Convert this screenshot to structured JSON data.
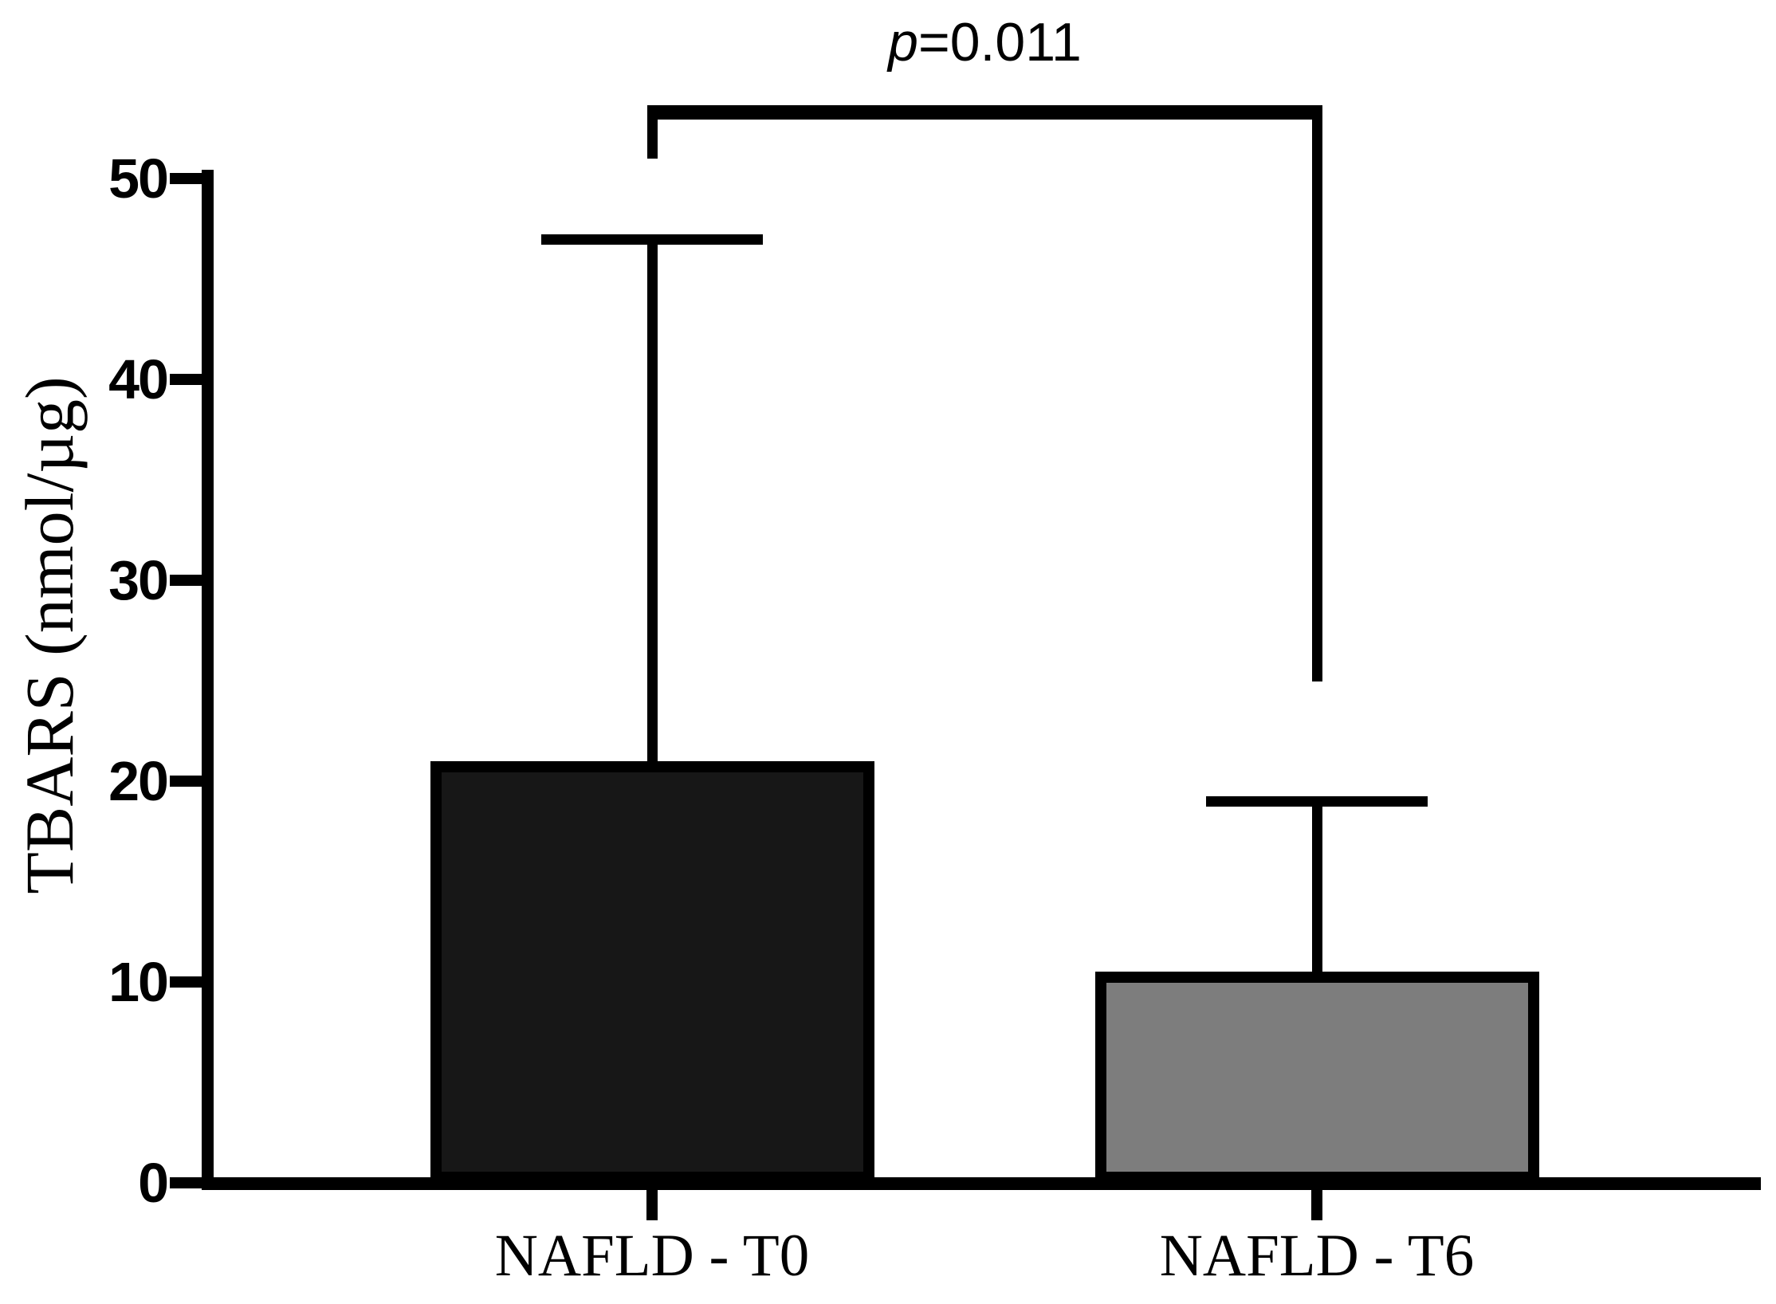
{
  "chart_data": {
    "type": "bar",
    "title": "",
    "categories": [
      "NAFLD - T0",
      "NAFLD - T6"
    ],
    "values": [
      21,
      10.5
    ],
    "error_high": [
      47,
      19
    ],
    "error_bars": "upper SD whiskers with caps",
    "ylabel": "TBARS (nmol/µg)",
    "xlabel": "",
    "ylim": [
      0,
      50
    ],
    "yticks": [
      0,
      10,
      20,
      30,
      40,
      50
    ],
    "grid": false,
    "legend": false,
    "background": "#ffffff",
    "axis_color": "#000000",
    "bar_colors": [
      "#171717",
      "#7d7d7d"
    ],
    "bar_border_color": "#000000",
    "significance": {
      "label": "p=0.011",
      "p_italic": "p",
      "p_rest": "=0.011",
      "between": [
        "NAFLD - T0",
        "NAFLD - T6"
      ]
    }
  }
}
